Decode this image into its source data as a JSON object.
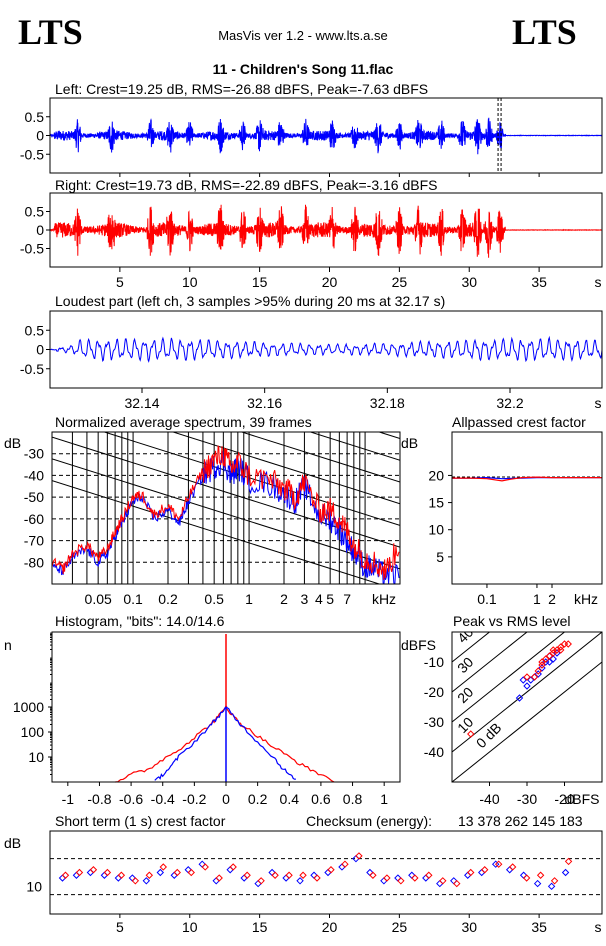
{
  "header": {
    "brand_left": "LTS",
    "brand_right": "LTS",
    "app": "MasVis ver 1.2 - www.lts.a.se",
    "file_title": "11 - Children's Song 11.flac"
  },
  "colors": {
    "left": "#0000ff",
    "right": "#ff0000",
    "axis": "#000000"
  },
  "chart_data": [
    {
      "id": "left_wave",
      "type": "line",
      "title": "Left: Crest=19.25 dB, RMS=-26.88 dBFS, Peak=-7.63 dBFS",
      "yticks": [
        "0.5",
        "0",
        "-0.5"
      ],
      "ytick_values": [
        0.5,
        0,
        -0.5
      ],
      "xlim": [
        0,
        39.5
      ],
      "ylim": [
        -1,
        1
      ],
      "peak_time_s": 32.17,
      "series": [
        {
          "color": "blue",
          "values": []
        }
      ]
    },
    {
      "id": "right_wave",
      "type": "line",
      "title": "Right: Crest=19.73 dB, RMS=-22.89 dBFS, Peak=-3.16 dBFS",
      "yticks": [
        "0.5",
        "0",
        "-0.5"
      ],
      "ytick_values": [
        0.5,
        0,
        -0.5
      ],
      "xticks": [
        "5",
        "10",
        "15",
        "20",
        "25",
        "30",
        "35",
        "s"
      ],
      "xtick_values": [
        5,
        10,
        15,
        20,
        25,
        30,
        35
      ],
      "xlim": [
        0,
        39.5
      ],
      "ylim": [
        -1,
        1
      ],
      "series": [
        {
          "color": "red",
          "values": []
        }
      ]
    },
    {
      "id": "loudest",
      "type": "line",
      "title": "Loudest part (left  ch, 3 samples >95% during 20 ms at 32.17 s)",
      "yticks": [
        "0.5",
        "0",
        "-0.5"
      ],
      "ytick_values": [
        0.5,
        0,
        -0.5
      ],
      "xticks": [
        "32.14",
        "32.16",
        "32.18",
        "32.2",
        "s"
      ],
      "xtick_values": [
        32.14,
        32.16,
        32.18,
        32.2
      ],
      "xlim": [
        32.125,
        32.215
      ],
      "ylim": [
        -1,
        1
      ],
      "series": [
        {
          "color": "blue",
          "values": []
        }
      ]
    },
    {
      "id": "spectrum",
      "type": "line",
      "title": "Normalized average spectrum, 39 frames",
      "ylabel": "dB",
      "yticks": [
        "-30",
        "-40",
        "-50",
        "-60",
        "-70",
        "-80"
      ],
      "ytick_values": [
        -30,
        -40,
        -50,
        -60,
        -70,
        -80
      ],
      "xticks": [
        "0.05",
        "0.1",
        "0.2",
        "0.5",
        "1",
        "2",
        "3",
        "4",
        "5",
        "7",
        "kHz"
      ],
      "xtick_values": [
        0.05,
        0.1,
        0.2,
        0.5,
        1,
        2,
        3,
        4,
        5,
        7
      ],
      "xlim": [
        0.02,
        20
      ],
      "ylim": [
        -90,
        -20
      ],
      "x_scale": "log",
      "series": [
        {
          "color": "blue",
          "x": [
            0.02,
            0.025,
            0.03,
            0.04,
            0.05,
            0.06,
            0.07,
            0.08,
            0.1,
            0.12,
            0.15,
            0.2,
            0.25,
            0.3,
            0.4,
            0.5,
            0.6,
            0.7,
            0.8,
            1,
            1.5,
            2,
            2.5,
            3,
            4,
            5,
            6,
            7,
            8,
            10,
            12,
            15,
            20
          ],
          "y": [
            -82,
            -84,
            -78,
            -74,
            -80,
            -76,
            -68,
            -62,
            -52,
            -50,
            -60,
            -56,
            -62,
            -52,
            -40,
            -36,
            -33,
            -40,
            -36,
            -42,
            -44,
            -48,
            -52,
            -45,
            -58,
            -60,
            -65,
            -70,
            -75,
            -82,
            -83,
            -86,
            -86
          ]
        },
        {
          "color": "red",
          "x": [
            0.02,
            0.025,
            0.03,
            0.04,
            0.05,
            0.06,
            0.07,
            0.08,
            0.1,
            0.12,
            0.15,
            0.2,
            0.25,
            0.3,
            0.4,
            0.5,
            0.6,
            0.7,
            0.8,
            1,
            1.5,
            2,
            2.5,
            3,
            4,
            5,
            6,
            7,
            8,
            10,
            12,
            15,
            20
          ],
          "y": [
            -80,
            -83,
            -76,
            -72,
            -78,
            -74,
            -66,
            -60,
            -50,
            -49,
            -58,
            -54,
            -60,
            -50,
            -38,
            -33,
            -30,
            -37,
            -34,
            -40,
            -42,
            -46,
            -50,
            -43,
            -56,
            -56,
            -60,
            -66,
            -72,
            -78,
            -80,
            -84,
            -72
          ]
        }
      ]
    },
    {
      "id": "crest",
      "type": "line",
      "title": "Allpassed crest factor",
      "ylabel": "dB",
      "yticks": [
        "20",
        "15",
        "10",
        "5"
      ],
      "ytick_values": [
        20,
        15,
        10,
        5
      ],
      "xticks": [
        "0.1",
        "1",
        "2",
        "kHz"
      ],
      "xtick_values": [
        0.1,
        1,
        2
      ],
      "xlim": [
        0.02,
        20
      ],
      "ylim": [
        0,
        28
      ],
      "x_scale": "log",
      "series": [
        {
          "color": "blue",
          "x": [
            0.02,
            0.05,
            0.1,
            0.2,
            0.5,
            1,
            2,
            5,
            20
          ],
          "y": [
            19.5,
            19.5,
            19.6,
            19.4,
            19.5,
            19.6,
            19.6,
            19.6,
            19.6
          ]
        },
        {
          "color": "red",
          "x": [
            0.02,
            0.05,
            0.1,
            0.2,
            0.3,
            0.5,
            1,
            2,
            5,
            20
          ],
          "y": [
            19.5,
            19.5,
            19.4,
            19.0,
            19.3,
            19.6,
            19.7,
            19.6,
            19.6,
            19.6
          ]
        }
      ]
    },
    {
      "id": "histogram",
      "type": "line",
      "title": "Histogram, \"bits\": 14.0/14.6",
      "ylabel": "n",
      "y_scale": "log",
      "yticks": [
        "1000",
        "100",
        "10"
      ],
      "ytick_values": [
        1000,
        100,
        10
      ],
      "xticks": [
        "-1",
        "-0.8",
        "-0.6",
        "-0.4",
        "-0.2",
        "0",
        "0.2",
        "0.4",
        "0.6",
        "0.8",
        "1"
      ],
      "xtick_values": [
        -1,
        -0.8,
        -0.6,
        -0.4,
        -0.2,
        0,
        0.2,
        0.4,
        0.6,
        0.8,
        1
      ],
      "xlim": [
        -1.1,
        1.1
      ],
      "ylim": [
        1,
        1000000
      ],
      "series": [
        {
          "color": "red",
          "x": [
            -0.7,
            -0.6,
            -0.5,
            -0.4,
            -0.3,
            -0.2,
            -0.1,
            -0.05,
            0,
            0.05,
            0.1,
            0.2,
            0.3,
            0.4,
            0.5,
            0.6,
            0.7
          ],
          "y": [
            1,
            2,
            3,
            8,
            20,
            60,
            200,
            400,
            1000,
            400,
            200,
            70,
            25,
            10,
            4,
            2,
            1
          ]
        },
        {
          "color": "blue",
          "x": [
            -0.45,
            -0.4,
            -0.35,
            -0.3,
            -0.2,
            -0.1,
            -0.05,
            0,
            0.05,
            0.1,
            0.2,
            0.3,
            0.35,
            0.4,
            0.45
          ],
          "y": [
            1,
            2,
            4,
            10,
            40,
            180,
            400,
            1000,
            400,
            180,
            40,
            10,
            4,
            2,
            1
          ]
        }
      ]
    },
    {
      "id": "peak_rms",
      "type": "scatter",
      "title": "Peak vs RMS level",
      "ylabel": "dBFS",
      "yticks": [
        "-10",
        "-20",
        "-30",
        "-40"
      ],
      "ytick_values": [
        -10,
        -20,
        -30,
        -40
      ],
      "xticks": [
        "-40",
        "-30",
        "-20",
        "dBFS"
      ],
      "xtick_values": [
        -40,
        -30,
        -20
      ],
      "xlim": [
        -50,
        -10
      ],
      "ylim": [
        -50,
        0
      ],
      "diagonal_labels": [
        "40",
        "30",
        "20",
        "10",
        "0 dB"
      ],
      "series": [
        {
          "color": "blue",
          "x": [
            -32,
            -30,
            -29,
            -28,
            -26,
            -25,
            -24,
            -23,
            -22,
            -31,
            -27,
            -24
          ],
          "y": [
            -22,
            -18,
            -16,
            -15,
            -12,
            -10,
            -8,
            -9,
            -7,
            -16,
            -14,
            -10
          ]
        },
        {
          "color": "red",
          "x": [
            -28,
            -27,
            -26,
            -25,
            -24,
            -23,
            -22,
            -21,
            -20,
            -19,
            -26,
            -23,
            -21,
            -45,
            -30
          ],
          "y": [
            -15,
            -13,
            -11,
            -9,
            -8,
            -7,
            -6,
            -5,
            -4,
            -4,
            -10,
            -6,
            -6,
            -34,
            -15
          ]
        }
      ]
    },
    {
      "id": "short_crest",
      "type": "scatter",
      "title": "Short term (1 s) crest factor",
      "checksum_label": "Checksum (energy):",
      "checksum_value": "13 378 262 145 183",
      "ylabel": "dB",
      "yticks": [
        "10"
      ],
      "ytick_values": [
        10
      ],
      "xticks": [
        "5",
        "10",
        "15",
        "20",
        "25",
        "30",
        "35",
        "s"
      ],
      "xtick_values": [
        5,
        10,
        15,
        20,
        25,
        30,
        35
      ],
      "xlim": [
        0,
        39.5
      ],
      "ylim": [
        0,
        30
      ],
      "dashed_levels": [
        20,
        7
      ],
      "series": [
        {
          "color": "blue",
          "x": [
            1,
            2,
            3,
            4,
            5,
            6,
            7,
            8,
            9,
            10,
            11,
            12,
            13,
            14,
            15,
            16,
            17,
            18,
            19,
            20,
            21,
            22,
            23,
            24,
            25,
            26,
            27,
            28,
            29,
            30,
            31,
            32,
            33,
            34,
            35,
            36,
            37
          ],
          "y": [
            13,
            14,
            15,
            14,
            13,
            13,
            12,
            15,
            14,
            16,
            18,
            12,
            16,
            13,
            11,
            15,
            13,
            12,
            14,
            15,
            17,
            20,
            15,
            12,
            13,
            14,
            13,
            11,
            12,
            14,
            15,
            18,
            16,
            14,
            11,
            10,
            15
          ]
        },
        {
          "color": "red",
          "x": [
            1,
            2,
            3,
            4,
            5,
            6,
            7,
            8,
            9,
            10,
            11,
            12,
            13,
            14,
            15,
            16,
            17,
            18,
            19,
            20,
            21,
            22,
            23,
            24,
            25,
            26,
            27,
            28,
            29,
            30,
            31,
            32,
            33,
            34,
            35,
            36,
            37
          ],
          "y": [
            14,
            15,
            16,
            15,
            14,
            12,
            14,
            17,
            15,
            15,
            17,
            13,
            17,
            14,
            12,
            14,
            14,
            14,
            13,
            16,
            18,
            21,
            14,
            13,
            12,
            13,
            14,
            12,
            11,
            15,
            16,
            18,
            17,
            13,
            14,
            12,
            19
          ]
        }
      ]
    }
  ]
}
